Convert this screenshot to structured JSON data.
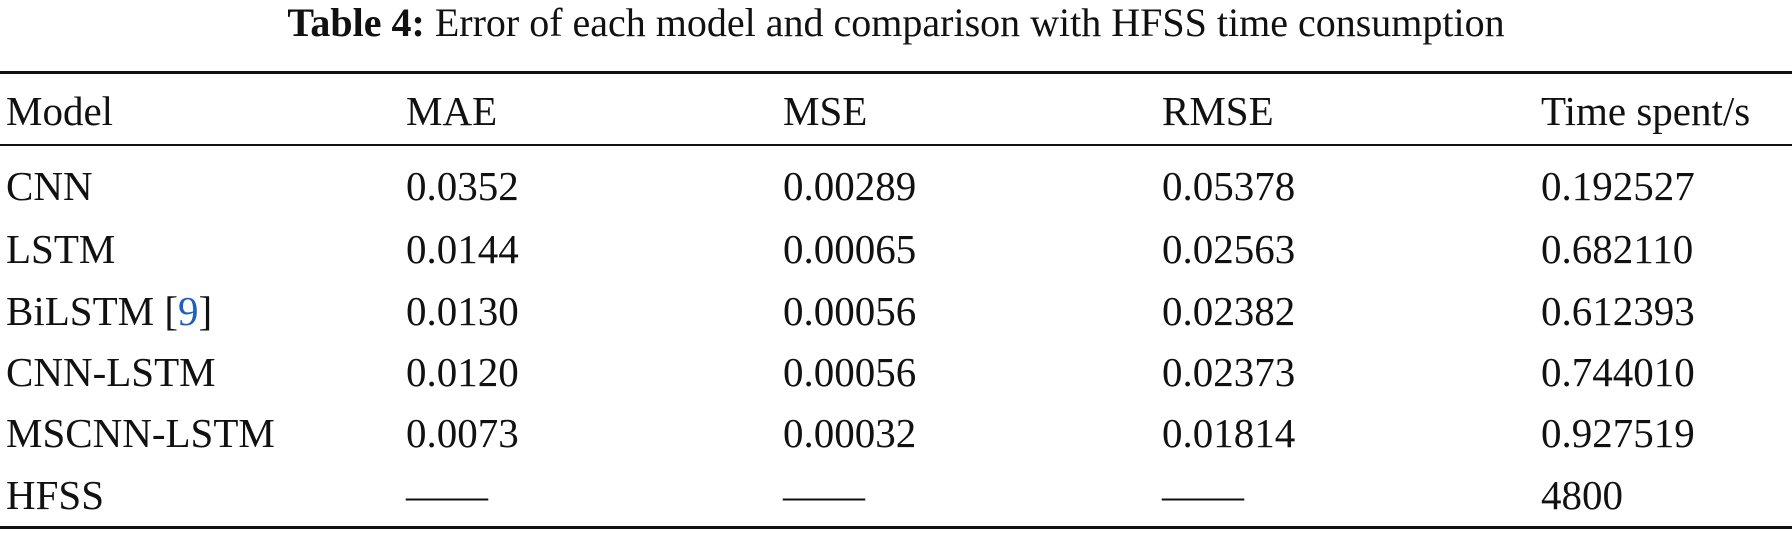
{
  "caption": {
    "label": "Table 4:",
    "text": "Error of each model and comparison with HFSS time consumption"
  },
  "table": {
    "header": [
      "Model",
      "MAE",
      "MSE",
      "RMSE",
      "Time spent/s"
    ],
    "rows": [
      [
        "CNN",
        "0.0352",
        "0.00289",
        "0.05378",
        "0.192527"
      ],
      [
        "LSTM",
        "0.0144",
        "0.00065",
        "0.02563",
        "0.682110"
      ],
      [
        [
          "BiLSTM [",
          "9",
          "]"
        ],
        "0.0130",
        "0.00056",
        "0.02382",
        "0.612393"
      ],
      [
        "CNN-LSTM",
        "0.0120",
        "0.00056",
        "0.02373",
        "0.744010"
      ],
      [
        "MSCNN-LSTM",
        "0.0073",
        "0.00032",
        "0.01814",
        "0.927519"
      ],
      [
        "HFSS",
        "——",
        "——",
        "——",
        "4800"
      ]
    ]
  }
}
